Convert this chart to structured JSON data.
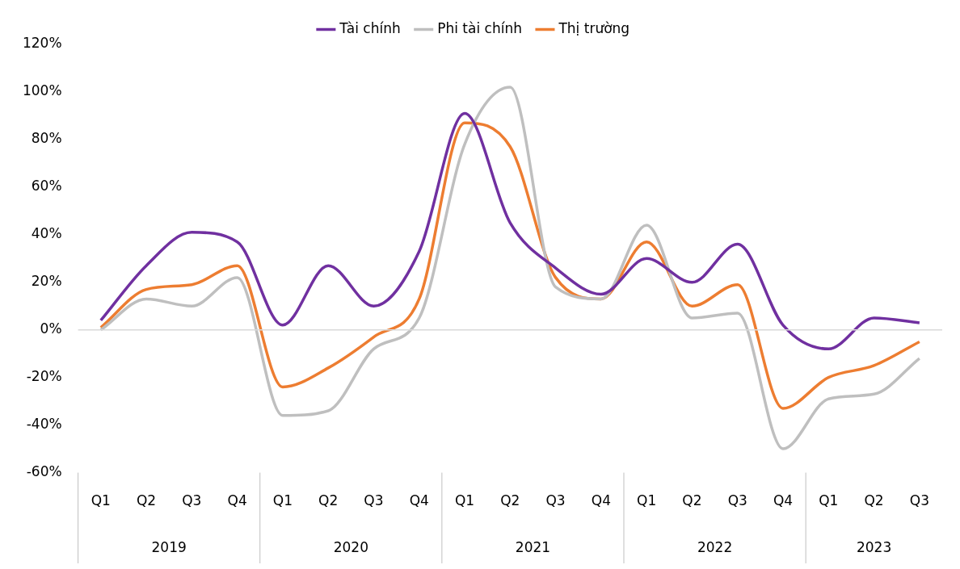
{
  "chart_data": {
    "type": "line",
    "categories": [
      "Q1",
      "Q2",
      "Q3",
      "Q4",
      "Q1",
      "Q2",
      "Q3",
      "Q4",
      "Q1",
      "Q2",
      "Q3",
      "Q4",
      "Q1",
      "Q2",
      "Q3",
      "Q4",
      "Q1",
      "Q2",
      "Q3"
    ],
    "series": [
      {
        "name": "Tài chính",
        "color": "#7030a0",
        "values": [
          4,
          27,
          41,
          37,
          2,
          27,
          10,
          33,
          91,
          45,
          26,
          15,
          30,
          20,
          36,
          2,
          -8,
          5,
          3
        ]
      },
      {
        "name": "Phi tài chính",
        "color": "#bfbfbf",
        "values": [
          0,
          13,
          10,
          22,
          -36,
          -34,
          -8,
          5,
          78,
          102,
          18,
          13,
          44,
          5,
          7,
          -50,
          -29,
          -27,
          -12
        ]
      },
      {
        "name": "Thị trường",
        "color": "#ed7d31",
        "values": [
          1,
          17,
          19,
          27,
          -24,
          -16,
          -3,
          13,
          87,
          77,
          22,
          13,
          37,
          10,
          19,
          -33,
          -20,
          -15,
          -5
        ]
      }
    ],
    "annotations": [
      "2019",
      "2020",
      "2021",
      "2022",
      "2023"
    ],
    "ylim": [
      -60,
      120
    ],
    "yticks": [
      {
        "value": -60,
        "label": "-60%"
      },
      {
        "value": -40,
        "label": "-40%"
      },
      {
        "value": -20,
        "label": "-20%"
      },
      {
        "value": 0,
        "label": "0%"
      },
      {
        "value": 20,
        "label": "20%"
      },
      {
        "value": 40,
        "label": "40%"
      },
      {
        "value": 60,
        "label": "60%"
      },
      {
        "value": 80,
        "label": "80%"
      },
      {
        "value": 100,
        "label": "100%"
      },
      {
        "value": 120,
        "label": "120%"
      }
    ],
    "ref_lines": [
      {
        "axis": "y",
        "value": 0,
        "color": "#d9d9d9"
      }
    ],
    "grid": false,
    "legend": "top",
    "marker": "none",
    "line_style": "solid"
  }
}
